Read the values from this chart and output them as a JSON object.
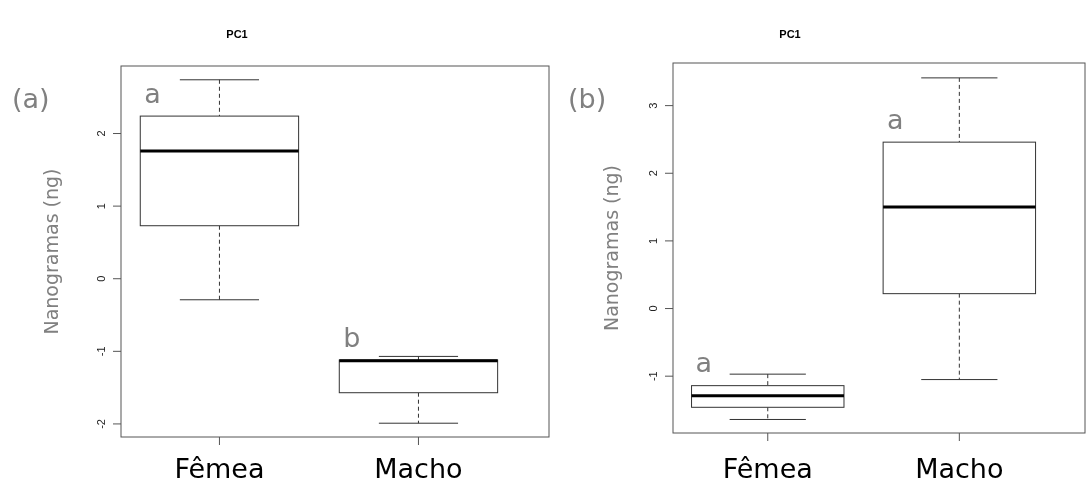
{
  "chart_data": [
    {
      "type": "box",
      "title": "PC1",
      "ylabel": "Nanogramas (ng)",
      "categories": [
        "Fêmea",
        "Macho"
      ],
      "ylim": [
        -2.18,
        2.93
      ],
      "yticks": [
        -2,
        -1,
        0,
        1,
        2
      ],
      "boxes": [
        {
          "low": -0.29,
          "q1": 0.73,
          "median": 1.76,
          "q3": 2.24,
          "high": 2.74
        },
        {
          "low": -1.99,
          "q1": -1.57,
          "median": -1.13,
          "q3": -1.12,
          "high": -1.07
        }
      ],
      "annotations": [
        "(a)",
        "a",
        "b"
      ]
    },
    {
      "type": "box",
      "title": "PC1",
      "ylabel": "Nanogramas (ng)",
      "categories": [
        "Fêmea",
        "Macho"
      ],
      "ylim": [
        -1.84,
        3.63
      ],
      "yticks": [
        -1,
        0,
        1,
        2,
        3
      ],
      "boxes": [
        {
          "low": -1.64,
          "q1": -1.46,
          "median": -1.29,
          "q3": -1.14,
          "high": -0.97
        },
        {
          "low": -1.05,
          "q1": 0.22,
          "median": 1.5,
          "q3": 2.46,
          "high": 3.41
        }
      ],
      "annotations": [
        "(b)",
        "a",
        "a"
      ]
    }
  ]
}
